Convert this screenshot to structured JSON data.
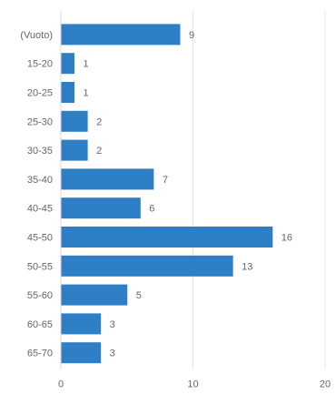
{
  "chart_data": {
    "type": "bar",
    "orientation": "horizontal",
    "categories": [
      "(Vuoto)",
      "15-20",
      "20-25",
      "25-30",
      "30-35",
      "35-40",
      "40-45",
      "45-50",
      "50-55",
      "55-60",
      "60-65",
      "65-70"
    ],
    "values": [
      9,
      1,
      1,
      2,
      2,
      7,
      6,
      16,
      13,
      5,
      3,
      3
    ],
    "title": "",
    "xlabel": "",
    "ylabel": "",
    "xlim": [
      0,
      20
    ],
    "xticks": [
      0,
      10,
      20
    ],
    "grid": true,
    "legend": "none",
    "bar_color": "#2E7FC6"
  }
}
